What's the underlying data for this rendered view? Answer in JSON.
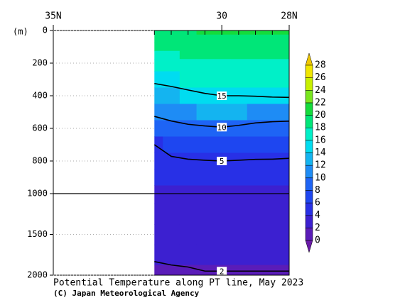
{
  "chart_data": {
    "type": "contour",
    "title": "Potential Temperature along PT line, May 2023",
    "subtitle": "(C) Japan Meteorological Agency",
    "ylabel": "(m)",
    "xlim": [
      35,
      28
    ],
    "xticks": [
      {
        "value": 35,
        "label": "35N"
      },
      30,
      {
        "value": 28,
        "label": "28N"
      }
    ],
    "ylim": [
      0,
      2000
    ],
    "ybreak": 1000,
    "yticks": [
      0,
      200,
      400,
      600,
      800,
      1000,
      1500,
      2000
    ],
    "grid": true,
    "x": [
      32,
      31.5,
      31,
      30.5,
      30,
      29.5,
      29,
      28.5,
      28
    ],
    "y": [
      0,
      50,
      100,
      150,
      200,
      300,
      400,
      500,
      600,
      700,
      800,
      900,
      1000,
      1250,
      1500,
      1750,
      2000
    ],
    "values": [
      [
        19.5,
        19.6,
        19.8,
        20,
        20.2,
        20.4,
        20.5,
        20.6,
        20.8
      ],
      [
        18.8,
        19,
        19.2,
        19.4,
        19.5,
        19.6,
        19.7,
        19.8,
        19.9
      ],
      [
        18.2,
        18.4,
        18.6,
        18.8,
        18.9,
        19,
        19.1,
        19.2,
        19.3
      ],
      [
        17.6,
        17.8,
        18,
        18.2,
        18.3,
        18.3,
        18.4,
        18.4,
        18.5
      ],
      [
        17,
        17.2,
        17.4,
        17.6,
        17.6,
        17.6,
        17.6,
        17.7,
        17.8
      ],
      [
        15.6,
        15.9,
        16.1,
        16.2,
        16.2,
        16.2,
        16.3,
        16.4,
        16.6
      ],
      [
        13.2,
        13.8,
        14.4,
        14.8,
        15,
        15,
        15.1,
        15.3,
        15.4
      ],
      [
        10.5,
        11.2,
        11.8,
        12.3,
        12.5,
        12.2,
        11.8,
        11.6,
        11.5
      ],
      [
        8.6,
        9,
        9.4,
        9.6,
        9.8,
        9.5,
        9.1,
        8.9,
        8.8
      ],
      [
        5,
        6,
        6.6,
        7,
        7.2,
        7,
        6.8,
        6.6,
        6.5
      ],
      [
        4.4,
        4.6,
        4.8,
        4.9,
        5,
        4.9,
        4.8,
        4.8,
        4.7
      ],
      [
        4,
        4.1,
        4.2,
        4.3,
        4.3,
        4.3,
        4.2,
        4.2,
        4.2
      ],
      [
        3.7,
        3.8,
        3.8,
        3.9,
        3.9,
        3.9,
        3.9,
        3.9,
        3.9
      ],
      [
        3.2,
        3.3,
        3.3,
        3.3,
        3.3,
        3.3,
        3.3,
        3.3,
        3.3
      ],
      [
        2.8,
        2.8,
        2.9,
        2.9,
        2.9,
        2.9,
        2.9,
        3,
        3
      ],
      [
        2.1,
        2.2,
        2.3,
        2.4,
        2.4,
        2.4,
        2.4,
        2.4,
        2.4
      ],
      [
        1.8,
        1.8,
        1.8,
        1.9,
        1.9,
        1.9,
        1.9,
        1.9,
        1.9
      ]
    ],
    "contour_levels": [
      15,
      10,
      5,
      2
    ],
    "colorbar": {
      "ticks": [
        0,
        2,
        4,
        6,
        8,
        10,
        12,
        14,
        16,
        18,
        20,
        22,
        24,
        26,
        28
      ],
      "colors": [
        "#6a1aa8",
        "#5a1cb8",
        "#3c20d0",
        "#2830e6",
        "#1e46f0",
        "#1e64f5",
        "#1e8cf5",
        "#14b4f0",
        "#00dcf0",
        "#00f0c8",
        "#00e678",
        "#14dc3c",
        "#78e61e",
        "#c8f000",
        "#f0e600",
        "#f0c800",
        "#f0a000"
      ]
    }
  }
}
